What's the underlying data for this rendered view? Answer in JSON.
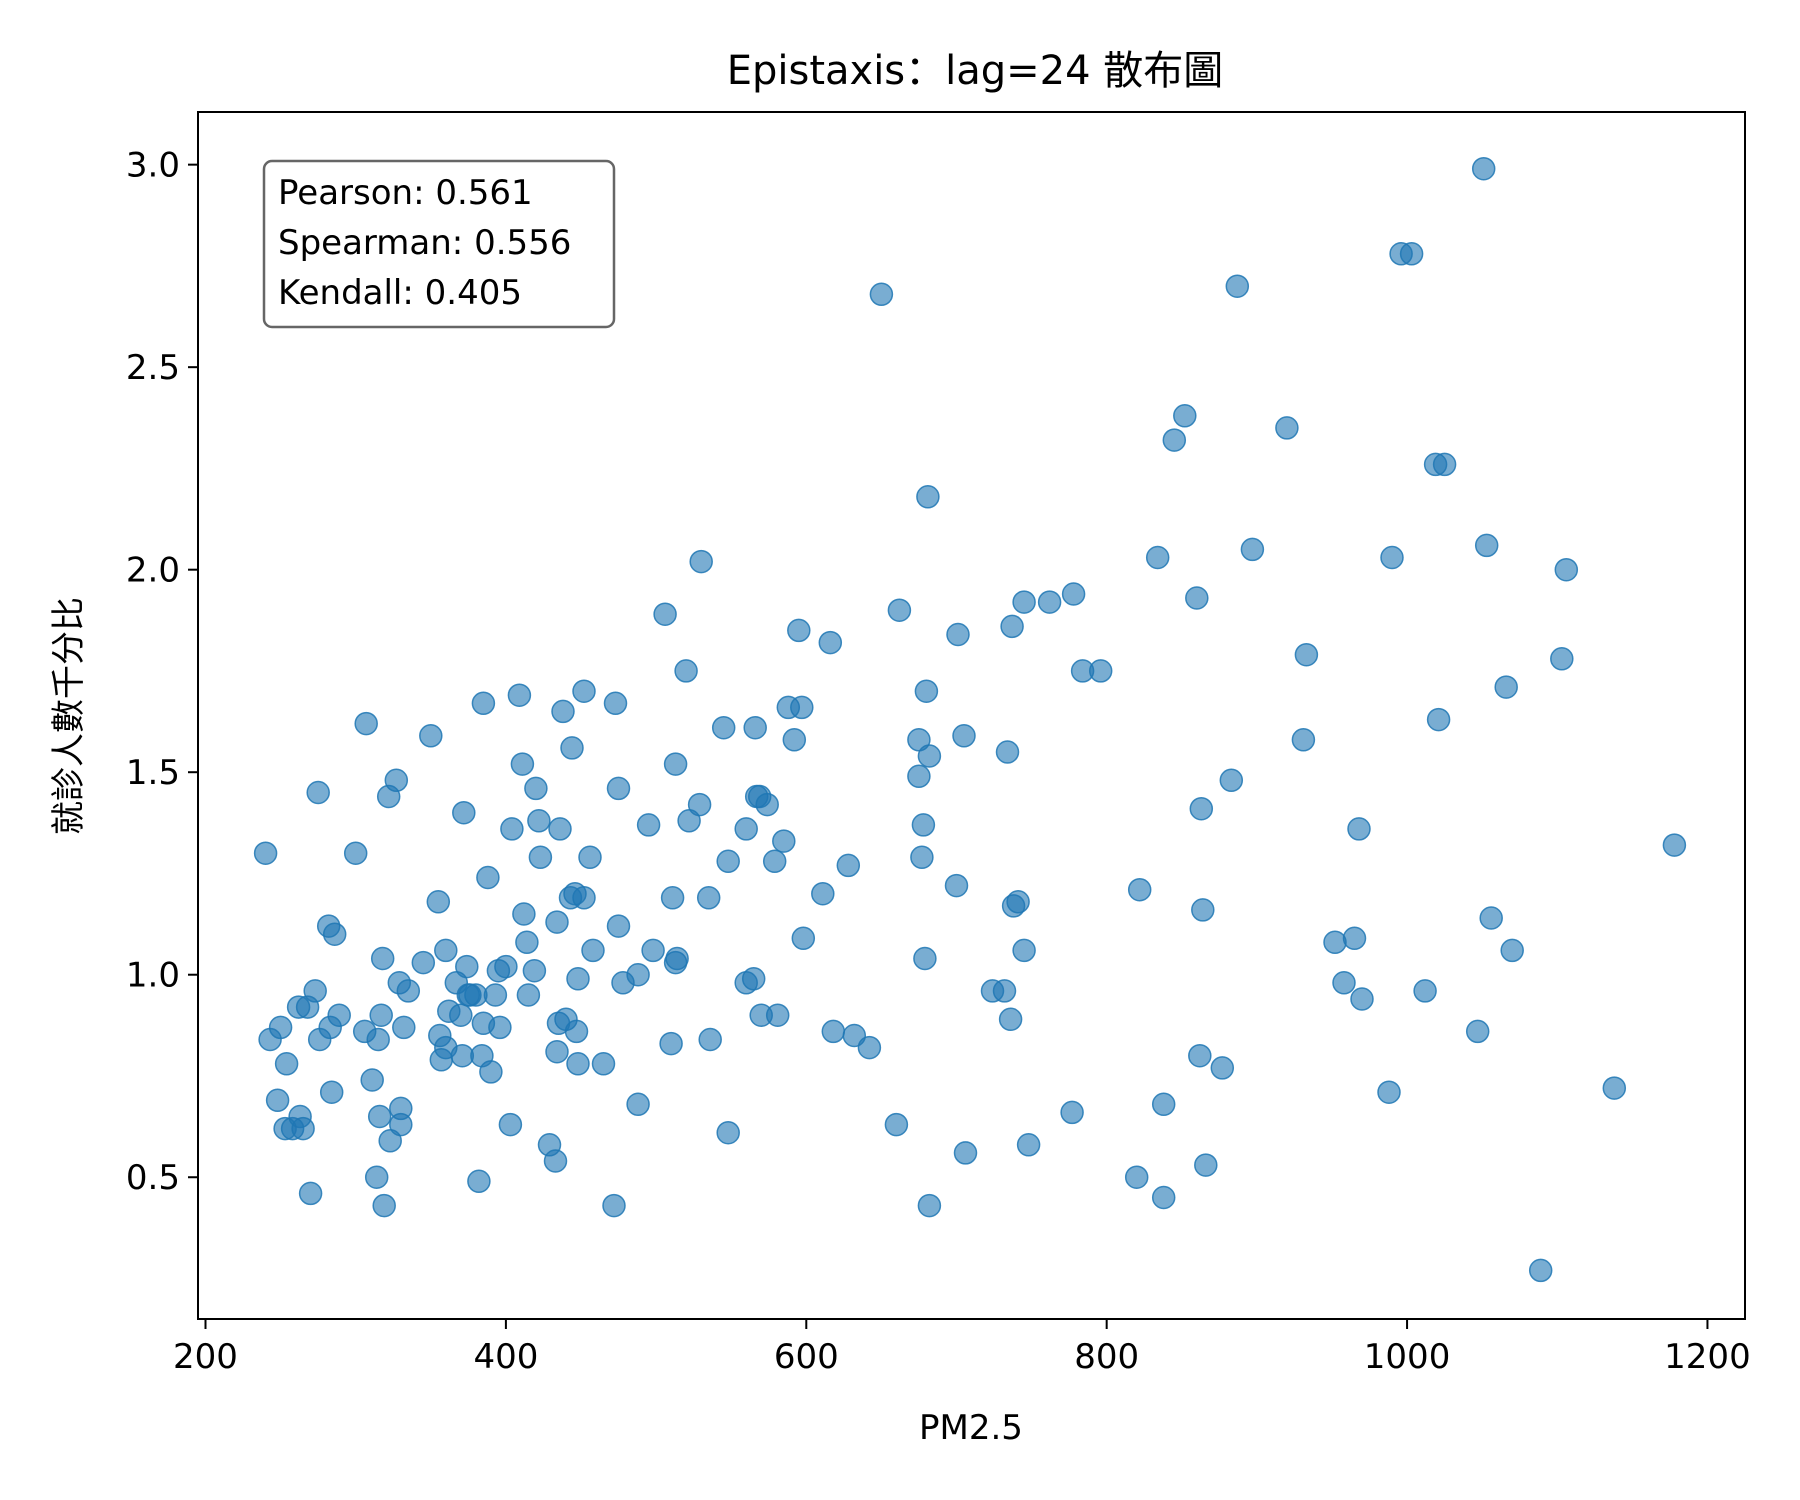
{
  "chart_data": {
    "type": "scatter",
    "title": "Epistaxis：lag=24 散布圖",
    "xlabel": "PM2.5",
    "ylabel": "就診人數千分比",
    "xlim": [
      195,
      1225
    ],
    "ylim": [
      0.15,
      3.13
    ],
    "xticks": [
      200,
      400,
      600,
      800,
      1000,
      1200
    ],
    "xtick_labels": [
      "200",
      "400",
      "600",
      "800",
      "1000",
      "1200"
    ],
    "yticks": [
      0.5,
      1.0,
      1.5,
      2.0,
      2.5,
      3.0
    ],
    "ytick_labels": [
      "0.5",
      "1.0",
      "1.5",
      "2.0",
      "2.5",
      "3.0"
    ],
    "marker_color": "#1f77b4",
    "marker_alpha": 0.6,
    "grid": false,
    "stats": {
      "pearson": "Pearson: 0.561",
      "spearman": "Spearman: 0.556",
      "kendall": "Kendall: 0.405"
    },
    "points": [
      [
        240,
        1.3
      ],
      [
        243,
        0.84
      ],
      [
        248,
        0.69
      ],
      [
        250,
        0.87
      ],
      [
        253,
        0.62
      ],
      [
        254,
        0.78
      ],
      [
        258,
        0.62
      ],
      [
        262,
        0.92
      ],
      [
        263,
        0.65
      ],
      [
        265,
        0.62
      ],
      [
        268,
        0.92
      ],
      [
        270,
        0.46
      ],
      [
        273,
        0.96
      ],
      [
        275,
        1.45
      ],
      [
        276,
        0.84
      ],
      [
        282,
        1.12
      ],
      [
        283,
        0.87
      ],
      [
        284,
        0.71
      ],
      [
        286,
        1.1
      ],
      [
        289,
        0.9
      ],
      [
        300,
        1.3
      ],
      [
        306,
        0.86
      ],
      [
        307,
        1.62
      ],
      [
        311,
        0.74
      ],
      [
        314,
        0.5
      ],
      [
        315,
        0.84
      ],
      [
        316,
        0.65
      ],
      [
        317,
        0.9
      ],
      [
        318,
        1.04
      ],
      [
        319,
        0.43
      ],
      [
        322,
        1.44
      ],
      [
        323,
        0.59
      ],
      [
        327,
        1.48
      ],
      [
        329,
        0.98
      ],
      [
        330,
        0.67
      ],
      [
        330,
        0.63
      ],
      [
        332,
        0.87
      ],
      [
        335,
        0.96
      ],
      [
        345,
        1.03
      ],
      [
        350,
        1.59
      ],
      [
        355,
        1.18
      ],
      [
        356,
        0.85
      ],
      [
        357,
        0.79
      ],
      [
        360,
        0.82
      ],
      [
        360,
        1.06
      ],
      [
        362,
        0.91
      ],
      [
        367,
        0.98
      ],
      [
        370,
        0.9
      ],
      [
        371,
        0.8
      ],
      [
        372,
        1.4
      ],
      [
        374,
        1.02
      ],
      [
        375,
        0.95
      ],
      [
        376,
        0.95
      ],
      [
        380,
        0.95
      ],
      [
        382,
        0.49
      ],
      [
        384,
        0.8
      ],
      [
        385,
        0.88
      ],
      [
        385,
        1.67
      ],
      [
        388,
        1.24
      ],
      [
        390,
        0.76
      ],
      [
        393,
        0.95
      ],
      [
        395,
        1.01
      ],
      [
        396,
        0.87
      ],
      [
        400,
        1.02
      ],
      [
        403,
        0.63
      ],
      [
        404,
        1.36
      ],
      [
        409,
        1.69
      ],
      [
        411,
        1.52
      ],
      [
        412,
        1.15
      ],
      [
        414,
        1.08
      ],
      [
        415,
        0.95
      ],
      [
        419,
        1.01
      ],
      [
        420,
        1.46
      ],
      [
        422,
        1.38
      ],
      [
        423,
        1.29
      ],
      [
        429,
        0.58
      ],
      [
        433,
        0.54
      ],
      [
        434,
        1.13
      ],
      [
        434,
        0.81
      ],
      [
        435,
        0.88
      ],
      [
        436,
        1.36
      ],
      [
        438,
        1.65
      ],
      [
        440,
        0.89
      ],
      [
        443,
        1.19
      ],
      [
        444,
        1.56
      ],
      [
        446,
        1.2
      ],
      [
        447,
        0.86
      ],
      [
        448,
        0.99
      ],
      [
        448,
        0.78
      ],
      [
        452,
        1.7
      ],
      [
        452,
        1.19
      ],
      [
        456,
        1.29
      ],
      [
        458,
        1.06
      ],
      [
        465,
        0.78
      ],
      [
        472,
        0.43
      ],
      [
        473,
        1.67
      ],
      [
        475,
        1.12
      ],
      [
        475,
        1.46
      ],
      [
        478,
        0.98
      ],
      [
        488,
        1.0
      ],
      [
        488,
        0.68
      ],
      [
        495,
        1.37
      ],
      [
        498,
        1.06
      ],
      [
        506,
        1.89
      ],
      [
        510,
        0.83
      ],
      [
        511,
        1.19
      ],
      [
        513,
        1.03
      ],
      [
        513,
        1.52
      ],
      [
        514,
        1.04
      ],
      [
        520,
        1.75
      ],
      [
        522,
        1.38
      ],
      [
        529,
        1.42
      ],
      [
        530,
        2.02
      ],
      [
        535,
        1.19
      ],
      [
        536,
        0.84
      ],
      [
        545,
        1.61
      ],
      [
        548,
        1.28
      ],
      [
        548,
        0.61
      ],
      [
        560,
        1.36
      ],
      [
        560,
        0.98
      ],
      [
        565,
        0.99
      ],
      [
        566,
        1.61
      ],
      [
        567,
        1.44
      ],
      [
        569,
        1.44
      ],
      [
        570,
        0.9
      ],
      [
        574,
        1.42
      ],
      [
        579,
        1.28
      ],
      [
        581,
        0.9
      ],
      [
        585,
        1.33
      ],
      [
        588,
        1.66
      ],
      [
        592,
        1.58
      ],
      [
        595,
        1.85
      ],
      [
        597,
        1.66
      ],
      [
        598,
        1.09
      ],
      [
        611,
        1.2
      ],
      [
        616,
        1.82
      ],
      [
        618,
        0.86
      ],
      [
        628,
        1.27
      ],
      [
        632,
        0.85
      ],
      [
        642,
        0.82
      ],
      [
        650,
        2.68
      ],
      [
        660,
        0.63
      ],
      [
        662,
        1.9
      ],
      [
        675,
        1.58
      ],
      [
        675,
        1.49
      ],
      [
        677,
        1.29
      ],
      [
        678,
        1.37
      ],
      [
        679,
        1.04
      ],
      [
        680,
        1.7
      ],
      [
        681,
        2.18
      ],
      [
        682,
        1.54
      ],
      [
        682,
        0.43
      ],
      [
        700,
        1.22
      ],
      [
        701,
        1.84
      ],
      [
        705,
        1.59
      ],
      [
        706,
        0.56
      ],
      [
        724,
        0.96
      ],
      [
        732,
        0.96
      ],
      [
        734,
        1.55
      ],
      [
        736,
        0.89
      ],
      [
        737,
        1.86
      ],
      [
        738,
        1.17
      ],
      [
        741,
        1.18
      ],
      [
        745,
        1.92
      ],
      [
        745,
        1.06
      ],
      [
        748,
        0.58
      ],
      [
        762,
        1.92
      ],
      [
        777,
        0.66
      ],
      [
        778,
        1.94
      ],
      [
        784,
        1.75
      ],
      [
        796,
        1.75
      ],
      [
        820,
        0.5
      ],
      [
        822,
        1.21
      ],
      [
        834,
        2.03
      ],
      [
        838,
        0.45
      ],
      [
        838,
        0.68
      ],
      [
        845,
        2.32
      ],
      [
        852,
        2.38
      ],
      [
        860,
        1.93
      ],
      [
        862,
        0.8
      ],
      [
        863,
        1.41
      ],
      [
        864,
        1.16
      ],
      [
        866,
        0.53
      ],
      [
        877,
        0.77
      ],
      [
        883,
        1.48
      ],
      [
        887,
        2.7
      ],
      [
        897,
        2.05
      ],
      [
        920,
        2.35
      ],
      [
        931,
        1.58
      ],
      [
        933,
        1.79
      ],
      [
        952,
        1.08
      ],
      [
        958,
        0.98
      ],
      [
        965,
        1.09
      ],
      [
        968,
        1.36
      ],
      [
        970,
        0.94
      ],
      [
        988,
        0.71
      ],
      [
        990,
        2.03
      ],
      [
        996,
        2.78
      ],
      [
        1003,
        2.78
      ],
      [
        1012,
        0.96
      ],
      [
        1019,
        2.26
      ],
      [
        1021,
        1.63
      ],
      [
        1025,
        2.26
      ],
      [
        1047,
        0.86
      ],
      [
        1051,
        2.99
      ],
      [
        1053,
        2.06
      ],
      [
        1056,
        1.14
      ],
      [
        1066,
        1.71
      ],
      [
        1070,
        1.06
      ],
      [
        1089,
        0.27
      ],
      [
        1103,
        1.78
      ],
      [
        1106,
        2.0
      ],
      [
        1138,
        0.72
      ],
      [
        1178,
        1.32
      ]
    ]
  }
}
